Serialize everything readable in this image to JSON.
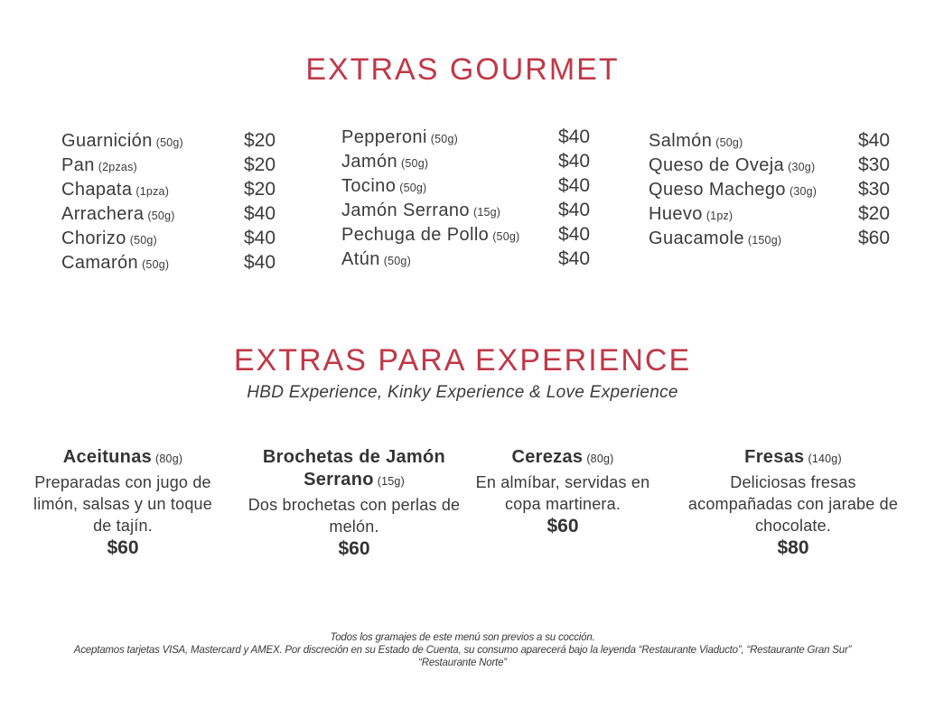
{
  "page": {
    "accent_color": "#c03848",
    "text_color": "#3b3b3b"
  },
  "gourmet": {
    "title": "EXTRAS GOURMET",
    "columns": [
      {
        "items": [
          {
            "name": "Guarnición",
            "portion": "(50g)",
            "price": "$20"
          },
          {
            "name": "Pan",
            "portion": "(2pzas)",
            "price": "$20"
          },
          {
            "name": "Chapata",
            "portion": "(1pza)",
            "price": "$20"
          },
          {
            "name": "Arrachera",
            "portion": "(50g)",
            "price": "$40"
          },
          {
            "name": "Chorizo",
            "portion": "(50g)",
            "price": "$40"
          },
          {
            "name": "Camarón",
            "portion": "(50g)",
            "price": "$40"
          }
        ]
      },
      {
        "items": [
          {
            "name": "Pepperoni",
            "portion": "(50g)",
            "price": "$40"
          },
          {
            "name": "Jamón",
            "portion": "(50g)",
            "price": "$40"
          },
          {
            "name": "Tocino",
            "portion": "(50g)",
            "price": "$40"
          },
          {
            "name": "Jamón Serrano",
            "portion": "(15g)",
            "price": "$40"
          },
          {
            "name": "Pechuga de Pollo",
            "portion": "(50g)",
            "price": "$40"
          },
          {
            "name": "Atún",
            "portion": "(50g)",
            "price": "$40"
          }
        ]
      },
      {
        "items": [
          {
            "name": "Salmón",
            "portion": "(50g)",
            "price": "$40"
          },
          {
            "name": "Queso de Oveja",
            "portion": "(30g)",
            "price": "$30"
          },
          {
            "name": "Queso Machego",
            "portion": "(30g)",
            "price": "$30"
          },
          {
            "name": "Huevo",
            "portion": "(1pz)",
            "price": "$20"
          },
          {
            "name": "Guacamole",
            "portion": "(150g)",
            "price": "$60"
          }
        ]
      }
    ]
  },
  "experience": {
    "title": "EXTRAS PARA EXPERIENCE",
    "subtitle": "HBD Experience, Kinky Experience & Love Experience",
    "items": [
      {
        "name": "Aceitunas",
        "portion": "(80g)",
        "description": "Preparadas con jugo de limón, salsas y un toque de tajín.",
        "price": "$60"
      },
      {
        "name": "Brochetas de Jamón Serrano",
        "portion": "(15g)",
        "description": "Dos brochetas con perlas de melón.",
        "price": "$60"
      },
      {
        "name": "Cerezas",
        "portion": "(80g)",
        "description": "En almíbar, servidas en copa martinera.",
        "price": "$60"
      },
      {
        "name": "Fresas",
        "portion": "(140g)",
        "description": "Deliciosas fresas acompañadas con jarabe de chocolate.",
        "price": "$80"
      }
    ]
  },
  "footer": {
    "line1": "Todos los gramajes de este menú son previos a su cocción.",
    "line2": "Aceptamos tarjetas VISA, Mastercard y AMEX. Por discreción en su Estado de Cuenta, su consumo aparecerá bajo la leyenda “Restaurante Viaducto”, “Restaurante Gran Sur”",
    "line3": "“Restaurante Norte”"
  }
}
